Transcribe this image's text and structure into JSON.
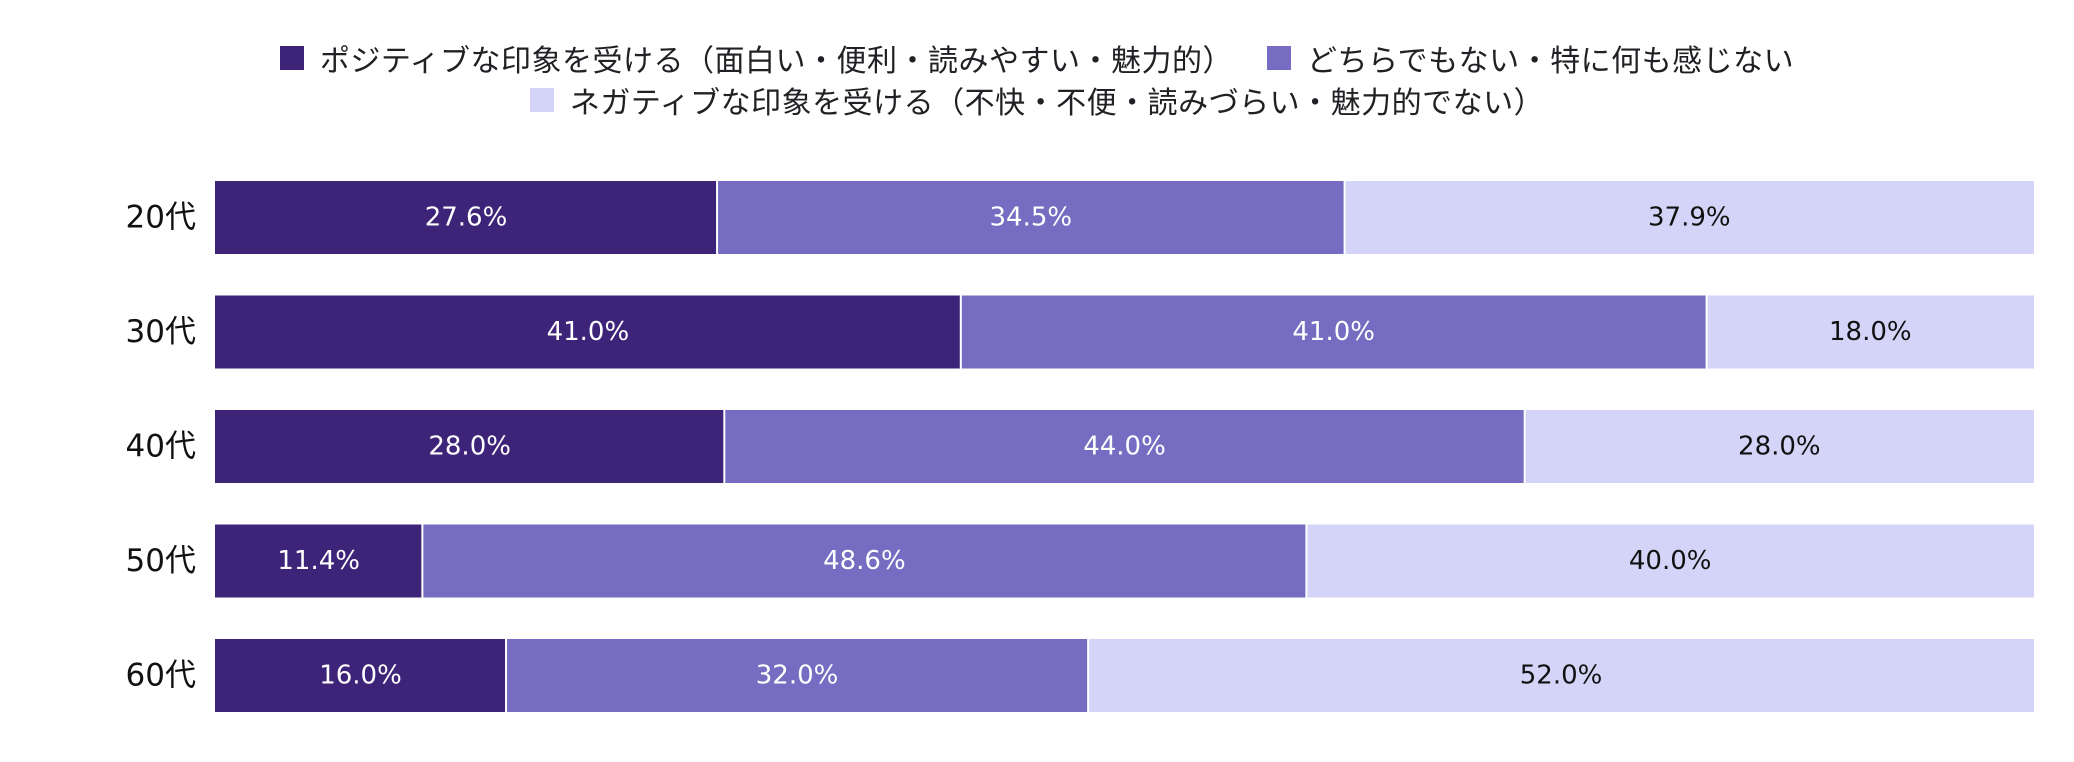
{
  "chart_data": {
    "type": "bar",
    "orientation": "horizontal",
    "stacked": true,
    "stack_mode": "percent",
    "title": "",
    "xlabel": "",
    "ylabel": "",
    "xlim": [
      0,
      100
    ],
    "legend_position": "top-center",
    "grid": false,
    "categories": [
      "20代",
      "30代",
      "40代",
      "50代",
      "60代"
    ],
    "series": [
      {
        "name": "ポジティブな印象を受ける（面白い・便利・読みやすい・魅力的）",
        "color": "#3d2479",
        "label_color": "#ffffff",
        "values": [
          27.6,
          41.0,
          28.0,
          11.4,
          16.0
        ],
        "labels": [
          "27.6%",
          "41.0%",
          "28.0%",
          "11.4%",
          "16.0%"
        ]
      },
      {
        "name": "どちらでもない・特に何も感じない",
        "color": "#766cc1",
        "label_color": "#ffffff",
        "values": [
          34.5,
          41.0,
          44.0,
          48.6,
          32.0
        ],
        "labels": [
          "34.5%",
          "41.0%",
          "44.0%",
          "48.6%",
          "32.0%"
        ]
      },
      {
        "name": "ネガティブな印象を受ける（不快・不便・読みづらい・魅力的でない）",
        "color": "#d4d4f8",
        "label_color": "#111111",
        "values": [
          37.9,
          18.0,
          28.0,
          40.0,
          52.0
        ],
        "labels": [
          "37.9%",
          "18.0%",
          "28.0%",
          "40.0%",
          "52.0%"
        ]
      }
    ]
  }
}
